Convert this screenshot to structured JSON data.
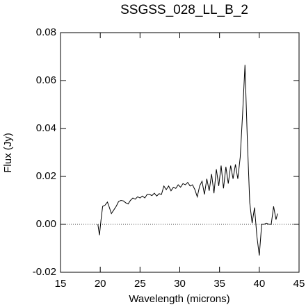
{
  "chart_data": {
    "type": "line",
    "title": "SSGSS_028_LL_B_2",
    "x_label": "Wavelength (microns)",
    "y_label": "Flux (Jy)",
    "xlim": [
      15,
      45
    ],
    "xticks": [
      15,
      20,
      25,
      30,
      35,
      40,
      45
    ],
    "ylim": [
      -0.02,
      0.08
    ],
    "yticks": [
      -0.02,
      {
        "value": 0,
        "label": "0.00"
      },
      0.02,
      0.04,
      0.06,
      0.08
    ],
    "reference_line": {
      "y": 0,
      "style": "dotted"
    },
    "series": [
      {
        "color": "#000000",
        "x": [
          19.7,
          19.9,
          20.1,
          20.3,
          20.6,
          20.9,
          21.1,
          21.4,
          21.7,
          22.0,
          22.3,
          22.6,
          22.9,
          23.2,
          23.5,
          23.8,
          24.1,
          24.4,
          24.7,
          25.0,
          25.3,
          25.6,
          25.9,
          26.2,
          26.5,
          26.8,
          27.1,
          27.4,
          27.7,
          28.0,
          28.3,
          28.6,
          28.9,
          29.2,
          29.5,
          29.8,
          30.1,
          30.4,
          30.7,
          31.0,
          31.3,
          31.6,
          31.9,
          32.2,
          32.5,
          32.8,
          33.1,
          33.4,
          33.7,
          34.0,
          34.3,
          34.6,
          34.9,
          35.2,
          35.5,
          35.8,
          36.1,
          36.4,
          36.7,
          37.0,
          37.3,
          37.6,
          37.9,
          38.2,
          38.5,
          38.8,
          39.1,
          39.4,
          39.7,
          40.0,
          40.3,
          40.6,
          40.9,
          41.2,
          41.5,
          41.8,
          42.1,
          42.3
        ],
        "values": [
          0.0,
          -0.0045,
          0.002,
          0.0075,
          0.008,
          0.0093,
          0.0075,
          0.0045,
          0.006,
          0.0075,
          0.0095,
          0.01,
          0.0098,
          0.009,
          0.0085,
          0.01,
          0.011,
          0.0105,
          0.0115,
          0.011,
          0.0118,
          0.011,
          0.0125,
          0.0125,
          0.012,
          0.013,
          0.0118,
          0.0128,
          0.0125,
          0.016,
          0.0145,
          0.016,
          0.014,
          0.0155,
          0.015,
          0.0165,
          0.0155,
          0.017,
          0.0165,
          0.0175,
          0.016,
          0.0165,
          0.0145,
          0.0115,
          0.016,
          0.018,
          0.0125,
          0.019,
          0.014,
          0.021,
          0.013,
          0.023,
          0.016,
          0.0245,
          0.015,
          0.024,
          0.017,
          0.0245,
          0.019,
          0.025,
          0.019,
          0.028,
          0.046,
          0.0665,
          0.035,
          0.009,
          0.0005,
          0.007,
          -0.005,
          -0.013,
          0.0,
          0.0,
          0.0005,
          0.0,
          0.0,
          0.0075,
          0.002,
          0.0045
        ]
      }
    ]
  }
}
